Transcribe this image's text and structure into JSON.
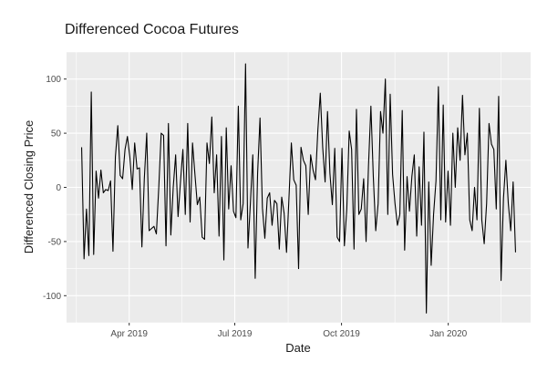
{
  "chart_data": {
    "type": "line",
    "title": "Differenced Cocoa Futures",
    "xlabel": "Date",
    "ylabel": "Differenced Closing Price",
    "x_start": "2019-02-19",
    "x_end": "2020-02-28",
    "xlim": [
      "2019-02-06",
      "2020-03-12"
    ],
    "ylim": [
      -125,
      125
    ],
    "yticks": [
      -100,
      -50,
      0,
      50,
      100
    ],
    "xticks": [
      {
        "date": "2019-04-01",
        "label": "Apr 2019"
      },
      {
        "date": "2019-07-01",
        "label": "Jul 2019"
      },
      {
        "date": "2019-10-01",
        "label": "Oct 2019"
      },
      {
        "date": "2020-01-01",
        "label": "Jan 2020"
      }
    ],
    "grid": true,
    "colors": {
      "panel": "#ebebeb",
      "grid": "#ffffff",
      "line": "#000000"
    },
    "series": [
      {
        "values": [
          37,
          -66,
          -20,
          -63,
          88,
          -62,
          15,
          -10,
          16,
          -5,
          -2,
          -3,
          6,
          -59,
          28,
          57,
          11,
          8,
          35,
          47,
          28,
          -2,
          41,
          17,
          18,
          -55,
          8,
          50,
          -40,
          -38,
          -36,
          -43,
          0,
          50,
          48,
          -54,
          59,
          -44,
          0,
          30,
          -27,
          5,
          35,
          -25,
          59,
          -32,
          41,
          12,
          -16,
          -9,
          -46,
          -48,
          41,
          22,
          65,
          -5,
          30,
          -45,
          47,
          -67,
          55,
          -20,
          20,
          -22,
          -28,
          75,
          -30,
          -15,
          114,
          -56,
          -15,
          30,
          -84,
          13,
          64,
          -19,
          -47,
          -10,
          -5,
          -35,
          -12,
          -15,
          -57,
          -9,
          -24,
          -60,
          -10,
          41,
          7,
          2,
          -75,
          37,
          25,
          20,
          -25,
          30,
          16,
          7,
          53,
          87,
          37,
          5,
          70,
          13,
          -16,
          36,
          -46,
          -50,
          36,
          -54,
          -20,
          52,
          35,
          -57,
          72,
          -25,
          -20,
          8,
          -50,
          20,
          75,
          10,
          -40,
          -15,
          70,
          50,
          100,
          -25,
          86,
          12,
          -15,
          -35,
          -25,
          71,
          -58,
          10,
          -22,
          10,
          30,
          -45,
          19,
          -35,
          51,
          -116,
          5,
          -72,
          -25,
          6,
          93,
          -30,
          76,
          -32,
          15,
          -35,
          50,
          0,
          55,
          25,
          85,
          30,
          50,
          -30,
          -40,
          0,
          -30,
          73,
          -30,
          -52,
          -15,
          59,
          40,
          35,
          -20,
          84,
          -86,
          -10,
          25,
          -15,
          -40,
          5,
          -60
        ]
      }
    ]
  }
}
